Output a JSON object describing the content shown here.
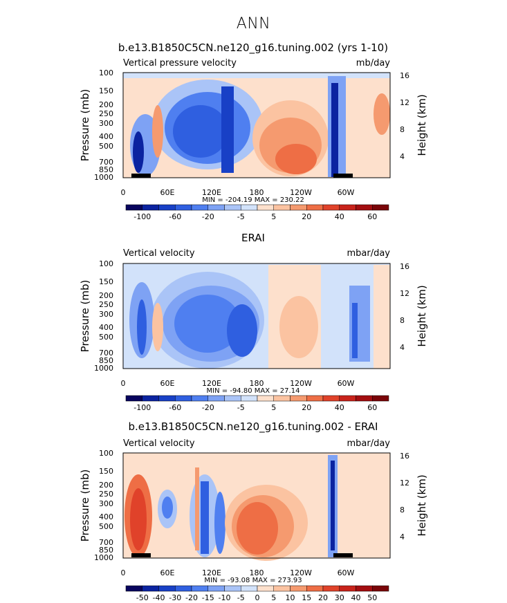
{
  "page": {
    "suptitle": "ANN"
  },
  "colors": {
    "diverging": [
      "#08045e",
      "#0b23a0",
      "#1840c6",
      "#2f5fe0",
      "#4f7ff0",
      "#7ea2f4",
      "#aac4f7",
      "#d2e2fa",
      "#fde0cc",
      "#fbc3a1",
      "#f59a6f",
      "#ee6e45",
      "#e0422a",
      "#c8231b",
      "#a30e10",
      "#7a0509"
    ]
  },
  "chart_data": [
    {
      "type": "heatmap",
      "title": "b.e13.B1850C5CN.ne120_g16.tuning.002 (yrs 1-10)",
      "left_label": "Vertical pressure velocity",
      "right_label": "mb/day",
      "ylabel": "Pressure (mb)",
      "ylabel_right": "Height (km)",
      "yticks": [
        "100",
        "150",
        "200",
        "250",
        "300",
        "400",
        "500",
        "700",
        "850",
        "1000"
      ],
      "yticks_right": [
        "16",
        "12",
        "8",
        "4"
      ],
      "xticks": [
        "0",
        "60E",
        "120E",
        "180",
        "120W",
        "60W"
      ],
      "stats": "MIN = -204.19   MAX = 230.22",
      "colorbar_labels": [
        "-100",
        "-60",
        "-20",
        "-5",
        "5",
        "20",
        "40",
        "60"
      ],
      "colorbar_label_slots": [
        1,
        3,
        5,
        7,
        9,
        11,
        13,
        15
      ]
    },
    {
      "type": "heatmap",
      "title": "ERAI",
      "left_label": "Vertical velocity",
      "right_label": "mbar/day",
      "ylabel": "Pressure (mb)",
      "ylabel_right": "Height (km)",
      "yticks": [
        "100",
        "150",
        "200",
        "250",
        "300",
        "400",
        "500",
        "700",
        "850",
        "1000"
      ],
      "yticks_right": [
        "16",
        "12",
        "8",
        "4"
      ],
      "xticks": [
        "0",
        "60E",
        "120E",
        "180",
        "120W",
        "60W"
      ],
      "stats": "MIN = -94.80   MAX = 27.14",
      "colorbar_labels": [
        "-100",
        "-60",
        "-20",
        "-5",
        "5",
        "20",
        "40",
        "60"
      ],
      "colorbar_label_slots": [
        1,
        3,
        5,
        7,
        9,
        11,
        13,
        15
      ]
    },
    {
      "type": "heatmap",
      "title": "b.e13.B1850C5CN.ne120_g16.tuning.002 - ERAI",
      "left_label": "Vertical velocity",
      "right_label": "mbar/day",
      "ylabel": "Pressure (mb)",
      "ylabel_right": "Height (km)",
      "yticks": [
        "100",
        "150",
        "200",
        "250",
        "300",
        "400",
        "500",
        "700",
        "850",
        "1000"
      ],
      "yticks_right": [
        "16",
        "12",
        "8",
        "4"
      ],
      "xticks": [
        "0",
        "60E",
        "120E",
        "180",
        "120W",
        "60W"
      ],
      "stats": "MIN = -93.08   MAX = 273.93",
      "colorbar_labels": [
        "-50",
        "-40",
        "-30",
        "-20",
        "-15",
        "-10",
        "-5",
        "0",
        "5",
        "10",
        "15",
        "20",
        "30",
        "40",
        "50"
      ],
      "colorbar_label_slots": [
        1,
        2,
        3,
        4,
        5,
        6,
        7,
        8,
        9,
        10,
        11,
        12,
        13,
        14,
        15
      ]
    }
  ]
}
